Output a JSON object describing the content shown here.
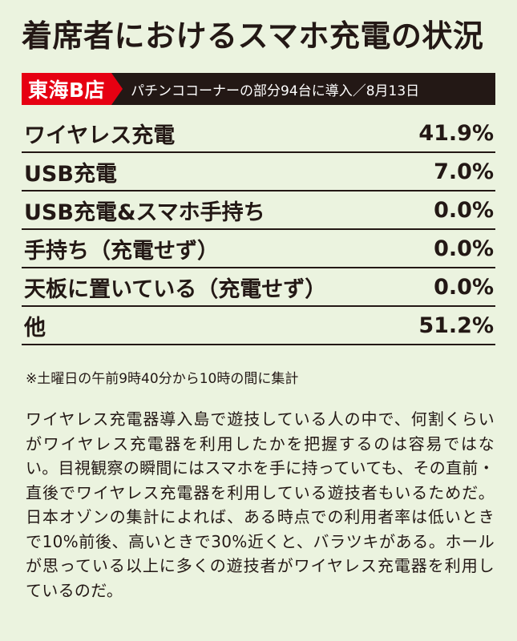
{
  "title": "着席者におけるスマホ充電の状況",
  "subheader": {
    "store": "東海B店",
    "note": "パチンココーナーの部分94台に導入／8月13日"
  },
  "rows": [
    {
      "label": "ワイヤレス充電",
      "value": "41.9%"
    },
    {
      "label": "USB充電",
      "value": "7.0%"
    },
    {
      "label": "USB充電&スマホ手持ち",
      "value": "0.0%"
    },
    {
      "label": "手持ち（充電せず）",
      "value": "0.0%"
    },
    {
      "label": "天板に置いている（充電せず）",
      "value": "0.0%"
    },
    {
      "label": "他",
      "value": "51.2%"
    }
  ],
  "footnote": "※土曜日の午前9時40分から10時の間に集計",
  "body_text": "ワイヤレス充電器導入島で遊技している人の中で、何割くらいがワイヤレス充電器を利用したかを把握するのは容易ではない。目視観察の瞬間にはスマホを手に持っていても、その直前・直後でワイヤレス充電器を利用している遊技者もいるためだ。日本オゾンの集計によれば、ある時点での利用者率は低いときで10%前後、高いときで30%近くと、バラツキがある。ホールが思っている以上に多くの遊技者がワイヤレス充電器を利用しているのだ。"
}
